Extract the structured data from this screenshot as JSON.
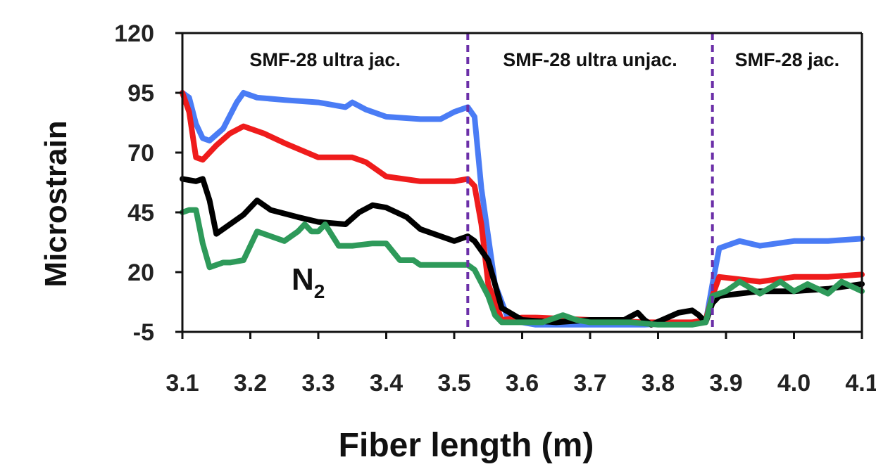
{
  "chart_data": {
    "type": "line",
    "title": "",
    "xlabel": "Fiber length (m)",
    "ylabel": "Microstrain",
    "xlim": [
      3.1,
      4.1
    ],
    "ylim": [
      -5,
      120
    ],
    "x_ticks": [
      "3.1",
      "3.2",
      "3.3",
      "3.4",
      "3.5",
      "3.6",
      "3.7",
      "3.8",
      "3.9",
      "4.0",
      "4.1"
    ],
    "y_ticks": [
      "120",
      "95",
      "70",
      "45",
      "20",
      "-5"
    ],
    "grid": false,
    "region_boundaries": [
      3.52,
      3.88
    ],
    "region_labels": [
      "SMF-28 ultra jac.",
      "SMF-28 ultra unjac.",
      "SMF-28  jac."
    ],
    "annotation": {
      "text": "N",
      "subscript": "2"
    },
    "series": [
      {
        "color": "#4a7cf5",
        "x": [
          3.1,
          3.11,
          3.12,
          3.13,
          3.14,
          3.16,
          3.18,
          3.19,
          3.21,
          3.25,
          3.3,
          3.34,
          3.35,
          3.37,
          3.4,
          3.45,
          3.48,
          3.5,
          3.52,
          3.53,
          3.54,
          3.56,
          3.58,
          3.62,
          3.7,
          3.78,
          3.85,
          3.87,
          3.88,
          3.89,
          3.92,
          3.95,
          4.0,
          4.05,
          4.1
        ],
        "values": [
          95,
          93,
          82,
          76,
          75,
          80,
          91,
          95,
          93,
          92,
          91,
          89,
          91,
          88,
          85,
          84,
          84,
          87,
          89,
          85,
          55,
          15,
          0,
          -2,
          -2,
          -2,
          -1,
          -1,
          15,
          30,
          33,
          31,
          33,
          33,
          34
        ]
      },
      {
        "color": "#ef1c1c",
        "x": [
          3.1,
          3.11,
          3.12,
          3.13,
          3.15,
          3.17,
          3.19,
          3.22,
          3.25,
          3.3,
          3.35,
          3.37,
          3.4,
          3.45,
          3.5,
          3.52,
          3.53,
          3.54,
          3.55,
          3.57,
          3.6,
          3.62,
          3.7,
          3.78,
          3.85,
          3.87,
          3.88,
          3.89,
          3.92,
          3.95,
          4.0,
          4.05,
          4.1
        ],
        "values": [
          95,
          87,
          68,
          67,
          73,
          78,
          81,
          78,
          74,
          68,
          68,
          66,
          60,
          58,
          58,
          59,
          56,
          40,
          15,
          0,
          1,
          1,
          0,
          -1,
          -1,
          0,
          10,
          18,
          17,
          16,
          18,
          18,
          19
        ]
      },
      {
        "color": "#000000",
        "x": [
          3.1,
          3.12,
          3.13,
          3.14,
          3.15,
          3.17,
          3.19,
          3.21,
          3.23,
          3.27,
          3.3,
          3.34,
          3.36,
          3.38,
          3.4,
          3.43,
          3.45,
          3.5,
          3.52,
          3.53,
          3.55,
          3.57,
          3.6,
          3.65,
          3.7,
          3.75,
          3.77,
          3.78,
          3.79,
          3.83,
          3.85,
          3.86,
          3.87,
          3.88,
          3.89,
          3.92,
          3.95,
          4.0,
          4.05,
          4.1
        ],
        "values": [
          59,
          58,
          59,
          50,
          36,
          40,
          44,
          50,
          46,
          43,
          41,
          40,
          45,
          48,
          47,
          43,
          38,
          33,
          35,
          33,
          25,
          5,
          0,
          -1,
          0,
          0,
          3,
          0,
          -2,
          3,
          4,
          2,
          -1,
          7,
          10,
          11,
          12,
          12,
          13,
          15
        ]
      },
      {
        "color": "#2e9a5a",
        "x": [
          3.1,
          3.11,
          3.12,
          3.13,
          3.14,
          3.15,
          3.16,
          3.17,
          3.19,
          3.21,
          3.23,
          3.25,
          3.27,
          3.28,
          3.29,
          3.3,
          3.31,
          3.33,
          3.35,
          3.38,
          3.4,
          3.42,
          3.44,
          3.45,
          3.5,
          3.52,
          3.53,
          3.55,
          3.56,
          3.57,
          3.6,
          3.63,
          3.66,
          3.68,
          3.7,
          3.73,
          3.76,
          3.8,
          3.85,
          3.87,
          3.88,
          3.9,
          3.92,
          3.95,
          3.98,
          4.0,
          4.02,
          4.05,
          4.07,
          4.1
        ],
        "values": [
          45,
          46,
          46,
          32,
          22,
          23,
          24,
          24,
          25,
          37,
          35,
          33,
          37,
          40,
          37,
          37,
          40,
          31,
          31,
          32,
          32,
          25,
          25,
          23,
          23,
          23,
          21,
          10,
          2,
          -1,
          -1,
          -1,
          2,
          0,
          -1,
          -1,
          -1,
          -2,
          -2,
          -1,
          10,
          12,
          16,
          11,
          16,
          12,
          15,
          11,
          16,
          12
        ]
      }
    ]
  }
}
